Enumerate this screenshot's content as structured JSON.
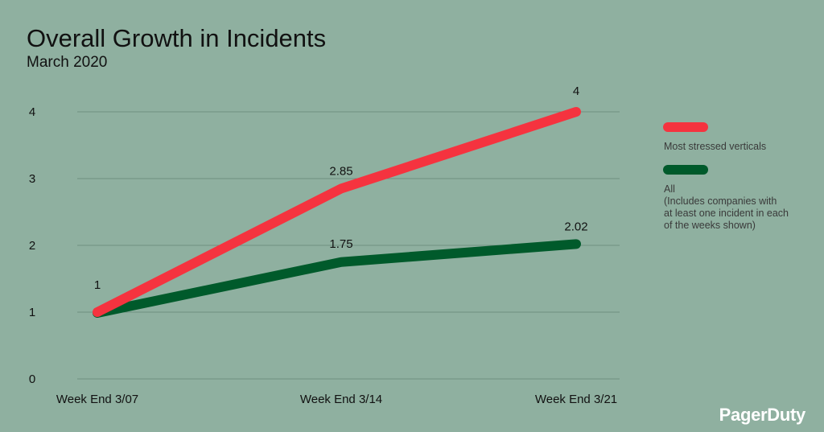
{
  "chart_data": {
    "type": "line",
    "title": "Overall Growth in Incidents",
    "subtitle": "March 2020",
    "categories": [
      "Week End 3/07",
      "Week End 3/14",
      "Week End 3/21"
    ],
    "y_tick_labels": [
      "0",
      "1",
      "2",
      "3",
      "4"
    ],
    "y_tick_values": [
      0,
      1,
      2,
      3,
      4
    ],
    "grid": true,
    "legend_position": "right",
    "series": [
      {
        "name": "Most stressed verticals",
        "values": [
          1,
          2.85,
          4
        ],
        "labels": [
          "1",
          "2.85",
          "4"
        ],
        "color": "#f5333f"
      },
      {
        "name": "All\n(Includes companies with\nat least one incident in each\nof the weeks shown)",
        "values": [
          1,
          1.75,
          2.02
        ],
        "labels": [
          "",
          "1.75",
          "2.02"
        ],
        "color": "#005a2b"
      }
    ]
  },
  "brand": {
    "logo_text": "PagerDuty"
  }
}
